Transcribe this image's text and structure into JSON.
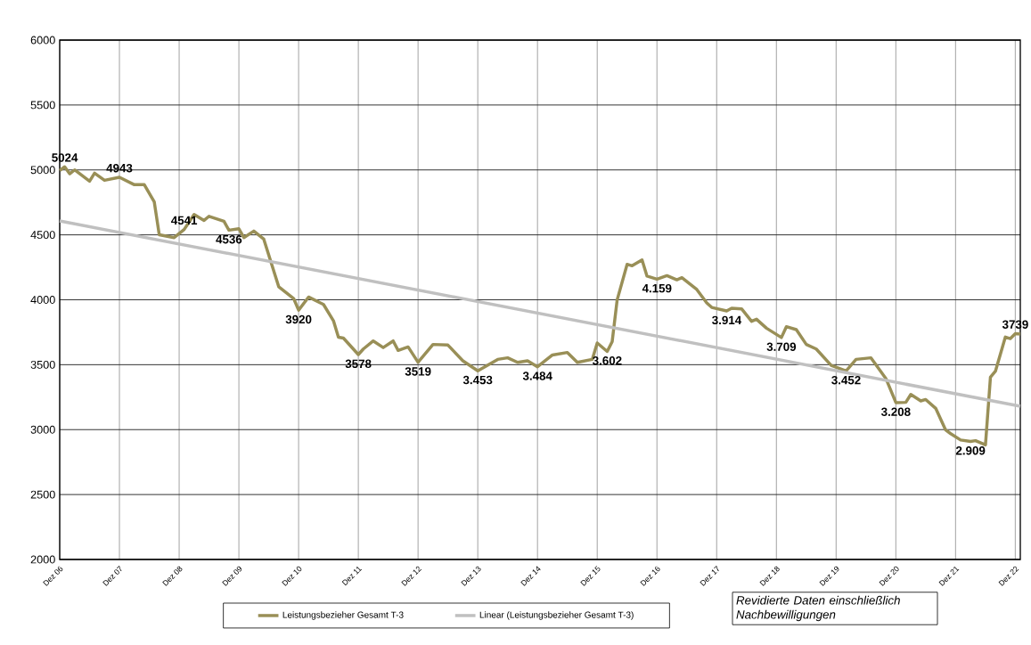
{
  "chart_data": {
    "type": "line",
    "legend": "bottom",
    "grid": true,
    "marker": "none",
    "line_style": "solid",
    "xlim": [
      "2006-12",
      "2023-01"
    ],
    "ylim": [
      2000,
      6000
    ],
    "yticks": [
      2000,
      2500,
      3000,
      3500,
      4000,
      4500,
      5000,
      5500,
      6000
    ],
    "xticks": [
      {
        "value": "2006-12",
        "label": "Dez 06"
      },
      {
        "value": "2007-12",
        "label": "Dez 07"
      },
      {
        "value": "2008-12",
        "label": "Dez 08"
      },
      {
        "value": "2009-12",
        "label": "Dez 09"
      },
      {
        "value": "2010-12",
        "label": "Dez 10"
      },
      {
        "value": "2011-12",
        "label": "Dez 11"
      },
      {
        "value": "2012-12",
        "label": "Dez 12"
      },
      {
        "value": "2013-12",
        "label": "Dez 13"
      },
      {
        "value": "2014-12",
        "label": "Dez 14"
      },
      {
        "value": "2015-12",
        "label": "Dez 15"
      },
      {
        "value": "2016-12",
        "label": "Dez 16"
      },
      {
        "value": "2017-12",
        "label": "Dez 17"
      },
      {
        "value": "2018-12",
        "label": "Dez 18"
      },
      {
        "value": "2019-12",
        "label": "Dez 19"
      },
      {
        "value": "2020-12",
        "label": "Dez 20"
      },
      {
        "value": "2021-12",
        "label": "Dez 21"
      },
      {
        "value": "2022-12",
        "label": "Dez 22"
      }
    ],
    "series": [
      {
        "name": "Leistungsbezieher Gesamt T-3",
        "color": "#998f57",
        "x": [
          "2006-12",
          "2007-01",
          "2007-02",
          "2007-03",
          "2007-06",
          "2007-07",
          "2007-09",
          "2007-12",
          "2008-03",
          "2008-05",
          "2008-07",
          "2008-08",
          "2008-11",
          "2009-01",
          "2009-03",
          "2009-05",
          "2009-06",
          "2009-09",
          "2009-10",
          "2009-12",
          "2010-01",
          "2010-03",
          "2010-05",
          "2010-08",
          "2010-11",
          "2010-12",
          "2011-02",
          "2011-05",
          "2011-07",
          "2011-08",
          "2011-09",
          "2011-12",
          "2012-01",
          "2012-03",
          "2012-05",
          "2012-07",
          "2012-08",
          "2012-10",
          "2012-12",
          "2013-03",
          "2013-06",
          "2013-09",
          "2013-12",
          "2014-04",
          "2014-06",
          "2014-08",
          "2014-10",
          "2014-12",
          "2015-03",
          "2015-06",
          "2015-08",
          "2015-11",
          "2015-12",
          "2016-02",
          "2016-03",
          "2016-04",
          "2016-06",
          "2016-07",
          "2016-09",
          "2016-10",
          "2016-12",
          "2017-02",
          "2017-04",
          "2017-05",
          "2017-08",
          "2017-10",
          "2017-11",
          "2018-02",
          "2018-03",
          "2018-05",
          "2018-07",
          "2018-08",
          "2018-10",
          "2019-01",
          "2019-02",
          "2019-04",
          "2019-06",
          "2019-08",
          "2019-11",
          "2020-02",
          "2020-04",
          "2020-07",
          "2020-10",
          "2020-12",
          "2021-02",
          "2021-03",
          "2021-05",
          "2021-06",
          "2021-08",
          "2021-10",
          "2021-11",
          "2022-01",
          "2022-03",
          "2022-04",
          "2022-06",
          "2022-07",
          "2022-08",
          "2022-10",
          "2022-11",
          "2022-12",
          "2023-01"
        ],
        "values": [
          4995,
          5024,
          4970,
          5000,
          4913,
          4975,
          4920,
          4943,
          4886,
          4886,
          4753,
          4501,
          4479,
          4541,
          4657,
          4611,
          4643,
          4604,
          4536,
          4547,
          4479,
          4529,
          4467,
          4101,
          4010,
          3920,
          4021,
          3964,
          3838,
          3712,
          3705,
          3578,
          3621,
          3683,
          3632,
          3683,
          3610,
          3637,
          3519,
          3656,
          3651,
          3530,
          3453,
          3541,
          3553,
          3518,
          3530,
          3484,
          3575,
          3594,
          3518,
          3541,
          3667,
          3602,
          3678,
          3999,
          4273,
          4262,
          4307,
          4182,
          4159,
          4186,
          4154,
          4170,
          4079,
          3976,
          3941,
          3914,
          3935,
          3930,
          3834,
          3850,
          3781,
          3709,
          3793,
          3770,
          3656,
          3621,
          3495,
          3452,
          3541,
          3553,
          3393,
          3208,
          3210,
          3271,
          3221,
          3232,
          3164,
          2997,
          2969,
          2920,
          2909,
          2915,
          2882,
          3404,
          3450,
          3713,
          3701,
          3739,
          3736
        ]
      },
      {
        "name": "Linear (Leistungsbezieher Gesamt T-3)",
        "color": "#c0c0c0",
        "x": [
          "2006-12",
          "2023-01"
        ],
        "values": [
          4607,
          3180
        ]
      }
    ],
    "annotations": [
      "Revidierte Daten einschließlich Nachbewilligungen",
      {
        "text": "5024",
        "x": "2007-01",
        "y": 5024
      },
      {
        "text": "4943",
        "x": "2007-12",
        "y": 4943
      },
      {
        "text": "4541",
        "x": "2009-01",
        "y": 4541
      },
      {
        "text": "4536",
        "x": "2009-10",
        "y": 4536
      },
      {
        "text": "3920",
        "x": "2010-12",
        "y": 3920
      },
      {
        "text": "3578",
        "x": "2011-12",
        "y": 3578
      },
      {
        "text": "3519",
        "x": "2012-12",
        "y": 3519
      },
      {
        "text": "3.453",
        "x": "2013-12",
        "y": 3453
      },
      {
        "text": "3.484",
        "x": "2014-12",
        "y": 3484
      },
      {
        "text": "3.602",
        "x": "2016-02",
        "y": 3602
      },
      {
        "text": "4.159",
        "x": "2016-12",
        "y": 4159
      },
      {
        "text": "3.914",
        "x": "2018-02",
        "y": 3914
      },
      {
        "text": "3.709",
        "x": "2019-01",
        "y": 3709
      },
      {
        "text": "3.452",
        "x": "2020-02",
        "y": 3452
      },
      {
        "text": "3.208",
        "x": "2020-12",
        "y": 3208
      },
      {
        "text": "2.909",
        "x": "2022-03",
        "y": 2909
      },
      {
        "text": "3739",
        "x": "2022-12",
        "y": 3739
      }
    ]
  }
}
